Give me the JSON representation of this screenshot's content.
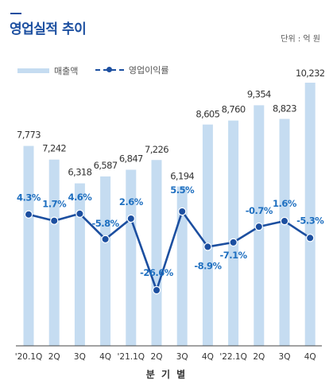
{
  "header": {
    "title": "영업실적 추이",
    "unit": "단위 : 억 원"
  },
  "legend": {
    "bar_label": "매출액",
    "line_label": "영업이익률"
  },
  "colors": {
    "bar": "#c5dcf1",
    "line": "#1c4fa0",
    "label_dark": "#333333",
    "label_blue": "#1e6fc0"
  },
  "chart_data": {
    "type": "bar",
    "categories": [
      "'20.1Q",
      "2Q",
      "3Q",
      "4Q",
      "'21.1Q",
      "2Q",
      "3Q",
      "4Q",
      "'22.1Q",
      "2Q",
      "3Q",
      "4Q"
    ],
    "xlabel": "분 기 별",
    "series": [
      {
        "name": "매출액",
        "type": "bar",
        "values": [
          7773,
          7242,
          6318,
          6587,
          6847,
          7226,
          6194,
          8605,
          8760,
          9354,
          8823,
          10232
        ],
        "labels": [
          "7,773",
          "7,242",
          "6,318",
          "6,587",
          "6,847",
          "7,226",
          "6,194",
          "8,605",
          "8,760",
          "9,354",
          "8,823",
          "10,232"
        ]
      },
      {
        "name": "영업이익률",
        "type": "line",
        "values": [
          4.3,
          1.7,
          4.6,
          -5.8,
          2.6,
          -26.6,
          5.5,
          -8.9,
          -7.1,
          -0.7,
          1.6,
          -5.3
        ],
        "labels": [
          "4.3%",
          "1.7%",
          "4.6%",
          "-5.8%",
          "2.6%",
          "-26.6%",
          "5.5%",
          "-8.9%",
          "-7.1%",
          "-0.7%",
          "1.6%",
          "-5.3%"
        ]
      }
    ],
    "bar_axis_range": [
      0,
      10232
    ],
    "line_axis_range": [
      -26.6,
      5.5
    ],
    "grid": false,
    "legend_position": "top-left"
  }
}
